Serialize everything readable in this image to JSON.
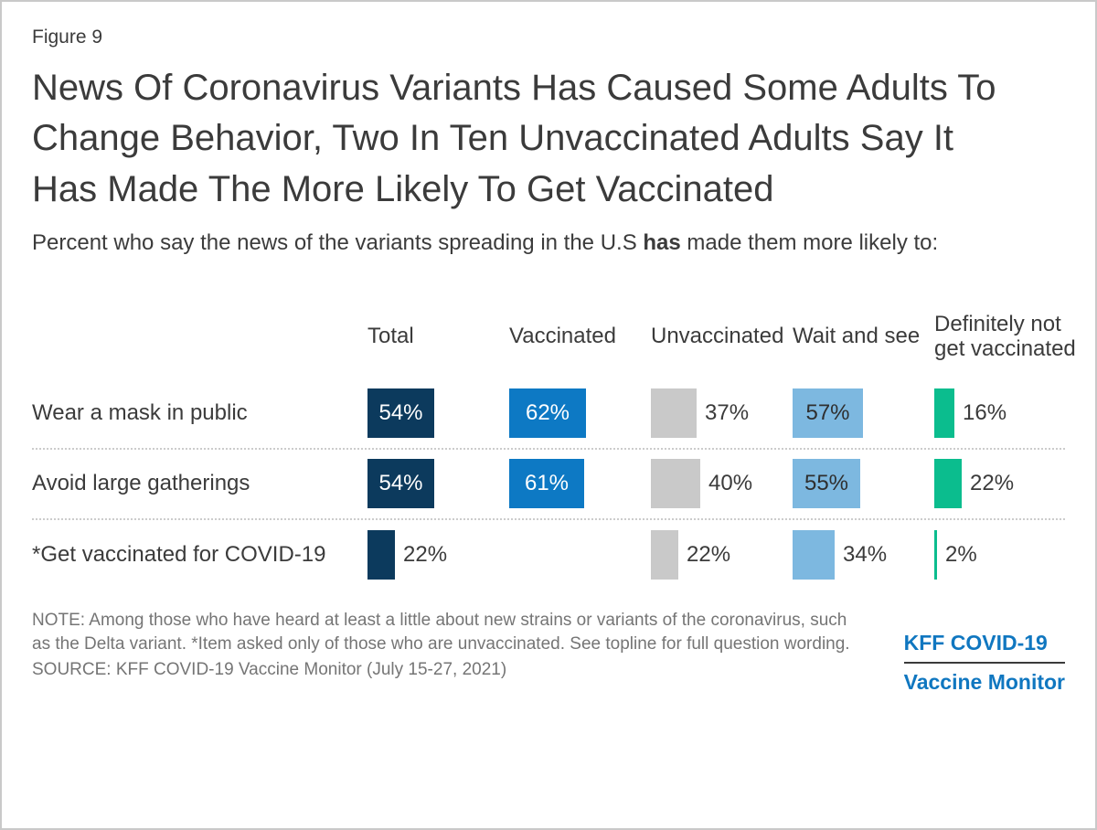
{
  "figure_label": "Figure 9",
  "title": "News Of Coronavirus Variants Has Caused Some Adults To Change Behavior, Two In Ten Unvaccinated Adults Say It Has Made The More Likely To Get Vaccinated",
  "subtitle": {
    "pre": "Percent who say the news of the variants spreading in the U.S ",
    "bold": "has",
    "post": " made them more likely to:"
  },
  "chart_data": {
    "type": "bar",
    "orientation": "horizontal",
    "value_suffix": "%",
    "value_range": [
      0,
      100
    ],
    "inside_label_threshold": 50,
    "legend_position": "top",
    "categories": [
      "Wear a mask in public",
      "Avoid large gatherings",
      "*Get vaccinated for COVID-19"
    ],
    "series": [
      {
        "name": "Total",
        "color": "#0c3a5d",
        "inside_text_color": "#ffffff",
        "values": [
          54,
          54,
          22
        ]
      },
      {
        "name": "Vaccinated",
        "color": "#0d79c4",
        "inside_text_color": "#ffffff",
        "values": [
          62,
          61,
          null
        ]
      },
      {
        "name": "Unvaccinated",
        "color": "#c9c9c9",
        "inside_text_color": "#3b3b3b",
        "values": [
          37,
          40,
          22
        ]
      },
      {
        "name": "Wait and see",
        "color": "#7db8e0",
        "inside_text_color": "#2f2f2f",
        "values": [
          57,
          55,
          34
        ]
      },
      {
        "name": "Definitely not get vaccinated",
        "color": "#0bbd8e",
        "inside_text_color": "#3b3b3b",
        "values": [
          16,
          22,
          2
        ]
      }
    ]
  },
  "note": "NOTE: Among those who have heard at least a little about new strains or variants of the coronavirus, such as the Delta variant. *Item asked only of those who are unvaccinated. See topline for full question wording.",
  "source": "SOURCE: KFF COVID-19 Vaccine Monitor (July 15-27, 2021)",
  "logo": {
    "line1": "KFF COVID-19",
    "line2": "Vaccine Monitor",
    "color": "#1077c0"
  }
}
